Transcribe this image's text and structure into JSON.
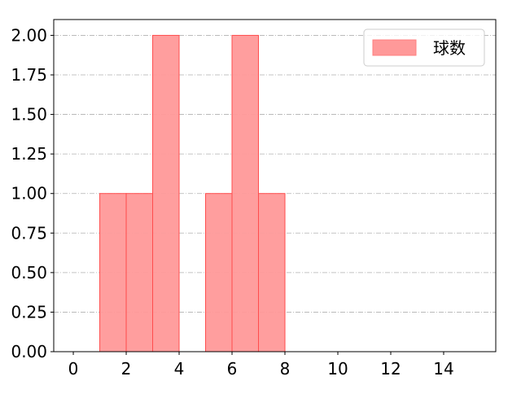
{
  "chart_data": {
    "type": "bar",
    "subtype": "histogram",
    "bins": [
      [
        1,
        2
      ],
      [
        2,
        3
      ],
      [
        3,
        4
      ],
      [
        5,
        6
      ],
      [
        6,
        7
      ],
      [
        7,
        8
      ]
    ],
    "values": [
      1,
      1,
      2,
      1,
      2,
      1
    ],
    "series": [
      {
        "name": "球数",
        "color": "#ff9999",
        "edge_color": "#ff4d4d"
      }
    ],
    "xlim": [
      -0.74,
      15.97
    ],
    "ylim": [
      0,
      2.1
    ],
    "xticks": [
      0,
      2,
      4,
      6,
      8,
      10,
      12,
      14
    ],
    "xtick_labels": [
      "0",
      "2",
      "4",
      "6",
      "8",
      "10",
      "12",
      "14"
    ],
    "yticks": [
      0,
      0.25,
      0.5,
      0.75,
      1,
      1.25,
      1.5,
      1.75,
      2
    ],
    "ytick_labels": [
      "0.00",
      "0.25",
      "0.50",
      "0.75",
      "1.00",
      "1.25",
      "1.50",
      "1.75",
      "2.00"
    ],
    "grid": {
      "axis": "y",
      "style": "dash-dot",
      "color": "#b0b0b0"
    },
    "legend": {
      "placement": "top-right",
      "label": "球数"
    }
  }
}
